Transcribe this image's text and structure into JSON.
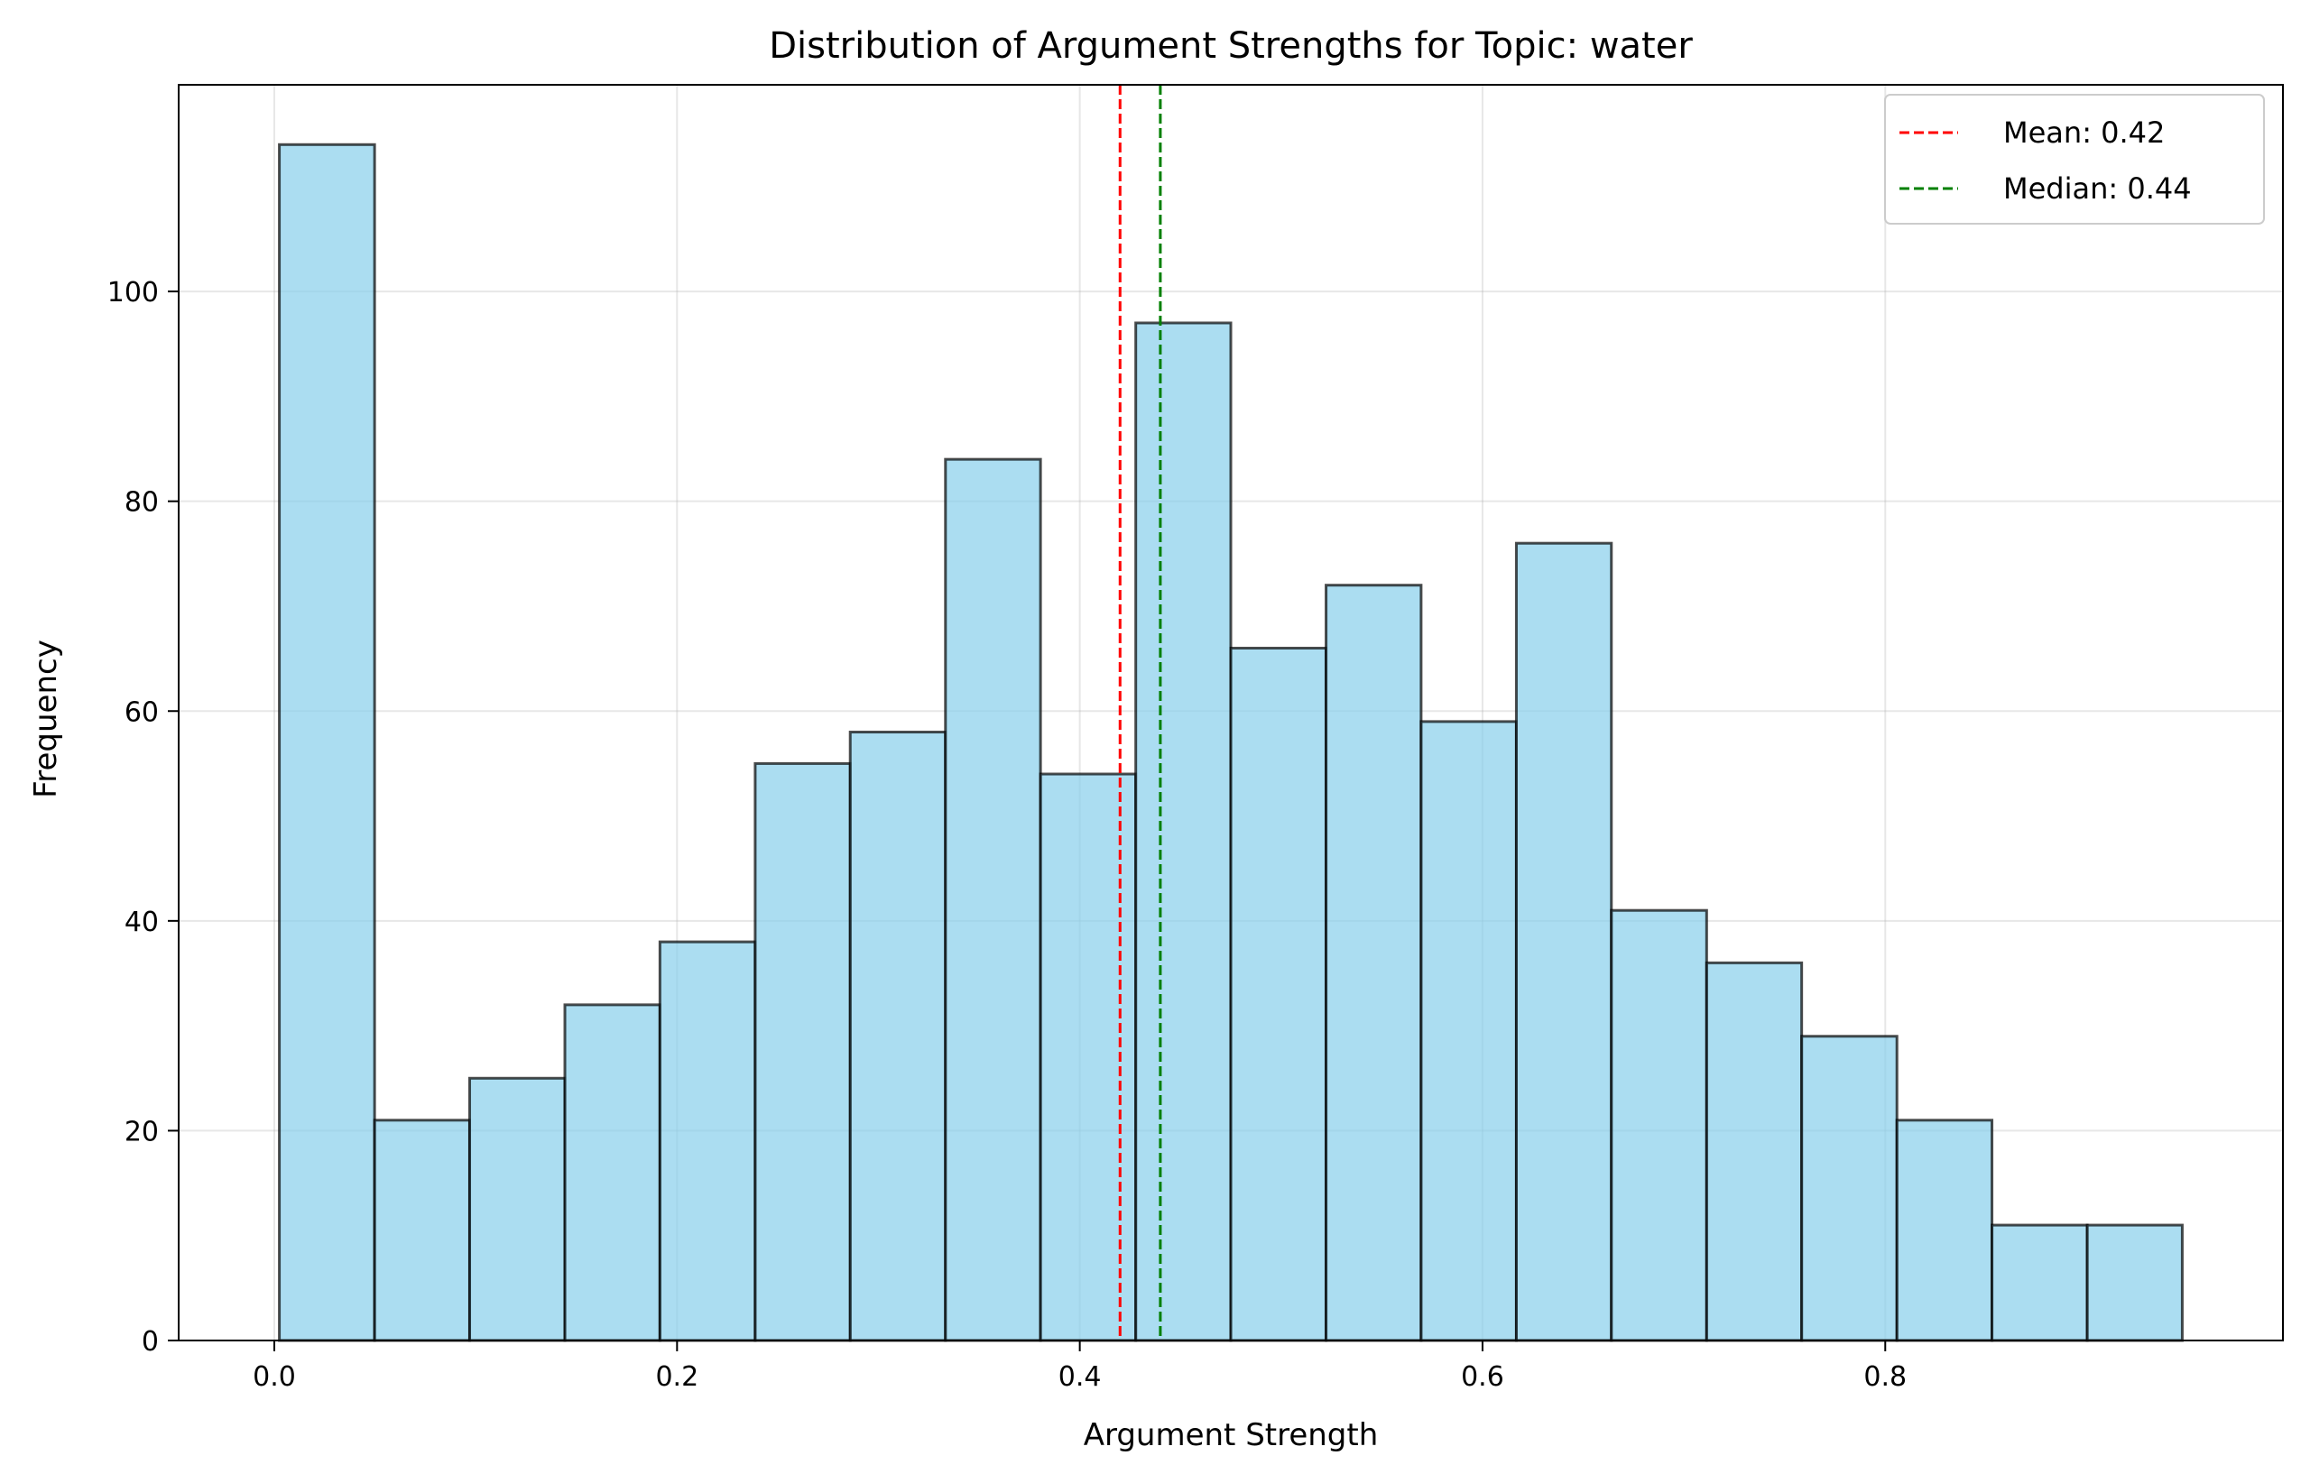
{
  "chart_data": {
    "type": "bar",
    "title": "Distribution of Argument Strengths for Topic: water",
    "xlabel": "Argument Strength",
    "ylabel": "Frequency",
    "xlim": [
      -0.0475,
      0.9975
    ],
    "ylim": [
      0,
      119.7
    ],
    "x_ticks": [
      0.0,
      0.2,
      0.4,
      0.6,
      0.8
    ],
    "x_tick_labels": [
      "0.0",
      "0.2",
      "0.4",
      "0.6",
      "0.8"
    ],
    "y_ticks": [
      0,
      20,
      40,
      60,
      80,
      100
    ],
    "y_tick_labels": [
      "0",
      "20",
      "40",
      "60",
      "80",
      "100"
    ],
    "grid": true,
    "bin_edges": [
      0.0025,
      0.0498,
      0.097,
      0.1443,
      0.1915,
      0.2388,
      0.286,
      0.3333,
      0.3805,
      0.4278,
      0.475,
      0.5223,
      0.5695,
      0.6168,
      0.664,
      0.7113,
      0.7585,
      0.8058,
      0.853,
      0.9003,
      0.9475
    ],
    "values": [
      114,
      21,
      25,
      32,
      38,
      55,
      58,
      84,
      54,
      97,
      66,
      72,
      59,
      76,
      41,
      36,
      29,
      21,
      11,
      11
    ],
    "bar_color": "#87CEEB",
    "bar_edge_color": "#000000",
    "reference_lines": [
      {
        "label": "Mean: 0.42",
        "value": 0.42,
        "color": "#ff0000",
        "style": "dashed"
      },
      {
        "label": "Median: 0.44",
        "value": 0.44,
        "color": "#008000",
        "style": "dashed"
      }
    ],
    "legend_position": "top-right"
  }
}
